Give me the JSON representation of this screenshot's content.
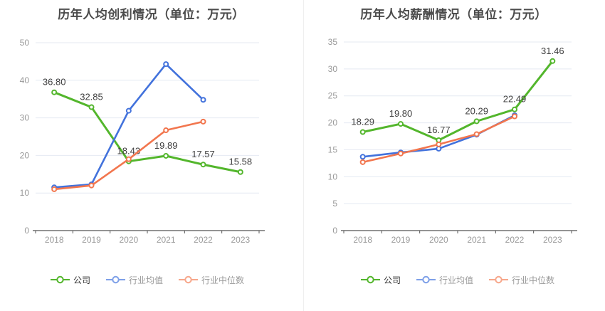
{
  "page": {
    "background": "#ffffff",
    "divider_color": "#efefef"
  },
  "styles": {
    "title_color": "#4a4a4a",
    "axis_line_color": "#555555",
    "grid_line_color": "#e4e9f2",
    "tick_label_color": "#999999",
    "point_label_color": "#404040"
  },
  "chart_data": [
    {
      "type": "line",
      "title": "历年人均创利情况（单位：万元）",
      "categories": [
        "2018",
        "2019",
        "2020",
        "2021",
        "2022",
        "2023"
      ],
      "ylim": [
        0,
        50
      ],
      "y_ticks": [
        0,
        10,
        20,
        30,
        40,
        50
      ],
      "grid": true,
      "legend_position": "bottom",
      "series": [
        {
          "key": "company",
          "name": "公司",
          "color": "#53b62c",
          "legend_icon_color": "#53b62c",
          "legend_text_color": "#333333",
          "line_width": 3,
          "values": [
            36.8,
            32.85,
            18.43,
            19.89,
            17.57,
            15.58
          ],
          "point_labels": [
            "36.80",
            "32.85",
            "18.43",
            "19.89",
            "17.57",
            "15.58"
          ]
        },
        {
          "key": "industry-average",
          "name": "行业均值",
          "color": "#4272dc",
          "legend_icon_color": "#7ea0e8",
          "legend_text_color": "#999999",
          "line_width": 2.6,
          "values": [
            11.5,
            12.3,
            31.9,
            44.3,
            34.8,
            null
          ],
          "point_labels": null
        },
        {
          "key": "industry-median",
          "name": "行业中位数",
          "color": "#f2764e",
          "legend_icon_color": "#f7a78b",
          "legend_text_color": "#999999",
          "line_width": 2.6,
          "values": [
            11.0,
            12.0,
            19.0,
            26.7,
            29.0,
            null
          ],
          "point_labels": null
        }
      ]
    },
    {
      "type": "line",
      "title": "历年人均薪酬情况（单位：万元）",
      "categories": [
        "2018",
        "2019",
        "2020",
        "2021",
        "2022",
        "2023"
      ],
      "ylim": [
        0,
        35
      ],
      "y_ticks": [
        0,
        5,
        10,
        15,
        20,
        25,
        30,
        35
      ],
      "grid": true,
      "legend_position": "bottom",
      "series": [
        {
          "key": "company",
          "name": "公司",
          "color": "#53b62c",
          "legend_icon_color": "#53b62c",
          "legend_text_color": "#333333",
          "line_width": 3,
          "values": [
            18.29,
            19.8,
            16.77,
            20.29,
            22.49,
            31.46
          ],
          "point_labels": [
            "18.29",
            "19.80",
            "16.77",
            "20.29",
            "22.49",
            "31.46"
          ]
        },
        {
          "key": "industry-average",
          "name": "行业均值",
          "color": "#4272dc",
          "legend_icon_color": "#7ea0e8",
          "legend_text_color": "#999999",
          "line_width": 2.6,
          "values": [
            13.7,
            14.5,
            15.2,
            17.8,
            21.4,
            null
          ],
          "point_labels": null
        },
        {
          "key": "industry-median",
          "name": "行业中位数",
          "color": "#f2764e",
          "legend_icon_color": "#f7a78b",
          "legend_text_color": "#999999",
          "line_width": 2.6,
          "values": [
            12.7,
            14.3,
            16.0,
            17.9,
            21.2,
            null
          ],
          "point_labels": null
        }
      ]
    }
  ]
}
